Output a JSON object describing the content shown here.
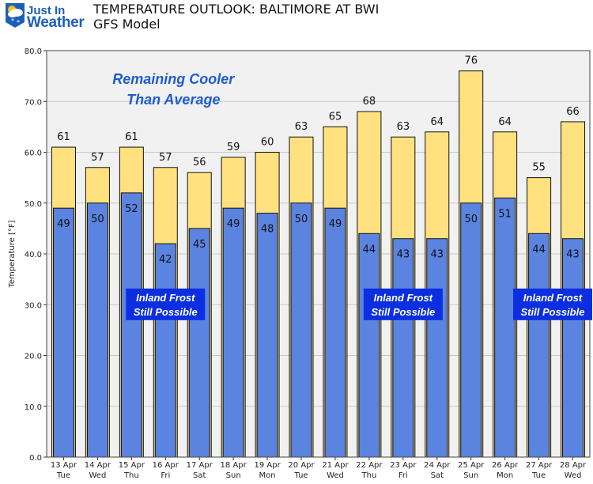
{
  "logo": {
    "line1": "Just In",
    "line2": "Weather",
    "badge_icon": "sun-cloud-snow-icon"
  },
  "header": {
    "title": "TEMPERATURE OUTLOOK: BALTIMORE AT BWI",
    "subtitle": "GFS Model"
  },
  "chart_data": {
    "type": "bar",
    "title": "TEMPERATURE OUTLOOK: BALTIMORE AT BWI",
    "subtitle": "GFS Model",
    "xlabel": "",
    "ylabel": "Temperature [°F]",
    "ylim": [
      0,
      80
    ],
    "yticks": [
      "0.0",
      "10.0",
      "20.0",
      "30.0",
      "40.0",
      "50.0",
      "60.0",
      "70.0",
      "80.0"
    ],
    "grid": true,
    "categories": [
      {
        "date": "13 Apr",
        "day": "Tue"
      },
      {
        "date": "14 Apr",
        "day": "Wed"
      },
      {
        "date": "15 Apr",
        "day": "Thu"
      },
      {
        "date": "16 Apr",
        "day": "Fri"
      },
      {
        "date": "17 Apr",
        "day": "Sat"
      },
      {
        "date": "18 Apr",
        "day": "Sun"
      },
      {
        "date": "19 Apr",
        "day": "Mon"
      },
      {
        "date": "20 Apr",
        "day": "Tue"
      },
      {
        "date": "21 Apr",
        "day": "Wed"
      },
      {
        "date": "22 Apr",
        "day": "Thu"
      },
      {
        "date": "23 Apr",
        "day": "Fri"
      },
      {
        "date": "24 Apr",
        "day": "Sat"
      },
      {
        "date": "25 Apr",
        "day": "Sun"
      },
      {
        "date": "26 Apr",
        "day": "Mon"
      },
      {
        "date": "27 Apr",
        "day": "Tue"
      },
      {
        "date": "28 Apr",
        "day": "Wed"
      }
    ],
    "series": [
      {
        "role": "high",
        "color": "#ffe17f",
        "values": [
          61,
          57,
          61,
          57,
          56,
          59,
          60,
          63,
          65,
          68,
          63,
          64,
          76,
          64,
          55,
          66
        ]
      },
      {
        "role": "low",
        "color": "#5b84e0",
        "values": [
          49,
          50,
          52,
          42,
          45,
          49,
          48,
          50,
          49,
          44,
          43,
          43,
          50,
          51,
          44,
          43
        ]
      }
    ],
    "annotations": [
      {
        "text_lines": [
          "Remaining Cooler",
          "Than Average"
        ],
        "style": "italic-blue",
        "color": "#1f5ccf",
        "at_category": 3,
        "y_value": 72.5
      },
      {
        "text_lines": [
          "Inland Frost",
          "Still Possible"
        ],
        "style": "boxed",
        "box_color": "#0b2fe0",
        "at_category": 3,
        "y_value": 31
      },
      {
        "text_lines": [
          "Inland Frost",
          "Still Possible"
        ],
        "style": "boxed",
        "box_color": "#0b2fe0",
        "at_category": 10,
        "y_value": 31
      },
      {
        "text_lines": [
          "Inland Frost",
          "Still Possible"
        ],
        "style": "boxed",
        "box_color": "#0b2fe0",
        "at_category": 15,
        "y_value": 31
      }
    ]
  }
}
